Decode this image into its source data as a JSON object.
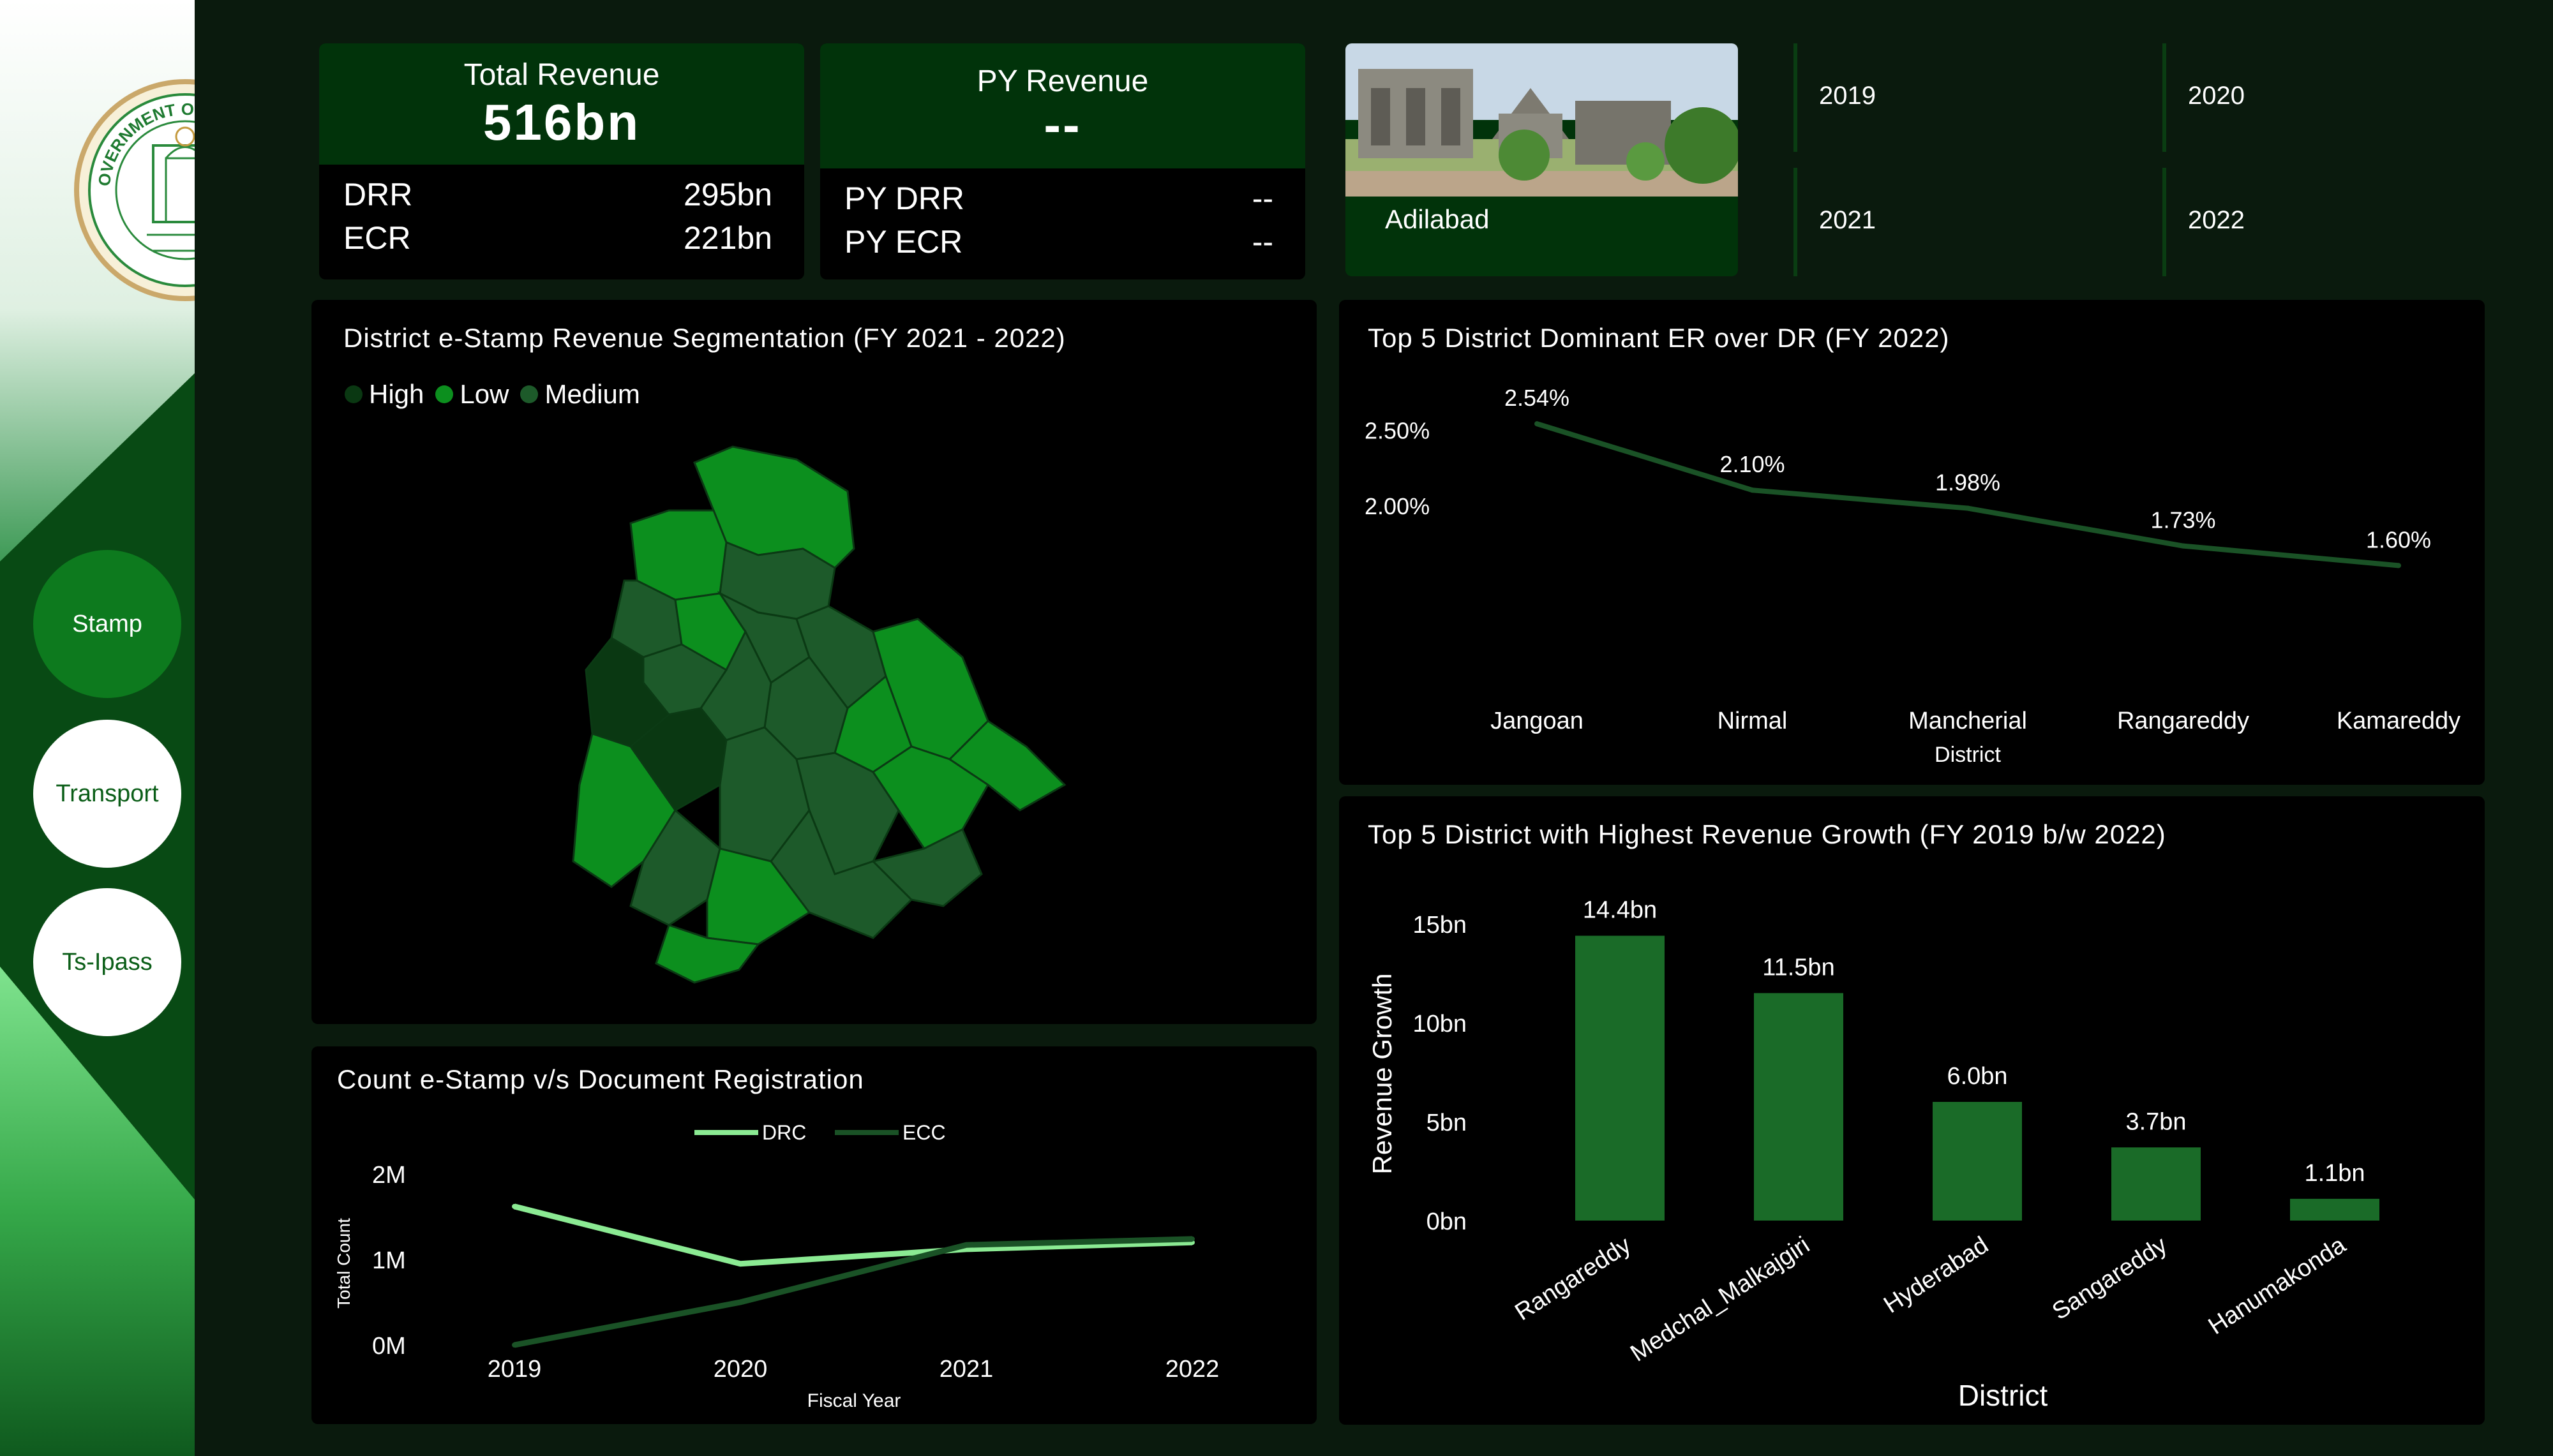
{
  "sidebar": {
    "seal_text": "GOVERNMENT OF TELANGANA",
    "nav": [
      {
        "label": "Stamp",
        "active": true
      },
      {
        "label": "Transport",
        "active": false
      },
      {
        "label": "Ts-Ipass",
        "active": false
      }
    ]
  },
  "kpi_total": {
    "title": "Total Revenue",
    "value": "516bn",
    "rows": [
      {
        "label": "DRR",
        "value": "295bn"
      },
      {
        "label": "ECR",
        "value": "221bn"
      }
    ]
  },
  "kpi_py": {
    "title": "PY Revenue",
    "value": "--",
    "rows": [
      {
        "label": "PY DRR",
        "value": "--"
      },
      {
        "label": "PY ECR",
        "value": "--"
      }
    ]
  },
  "district_card": {
    "label": "Adilabad"
  },
  "year_slicer": {
    "years": [
      "2019",
      "2020",
      "2021",
      "2022"
    ]
  },
  "map_panel": {
    "title": "District e-Stamp Revenue Segmentation (FY 2021 - 2022)",
    "legend": [
      {
        "label": "High",
        "color": "#0a3812"
      },
      {
        "label": "Low",
        "color": "#0c8f1e"
      },
      {
        "label": "Medium",
        "color": "#1d5a2a"
      }
    ]
  },
  "colors": {
    "accent": "#0c8f1e",
    "dark_line": "#1a5226",
    "light_line": "#8bea93",
    "bar": "#1a6b28"
  },
  "chart_data": [
    {
      "type": "line",
      "title": "Top 5 District Dominant ER over DR (FY 2022)",
      "xlabel": "District",
      "ylabel": "",
      "categories": [
        "Jangoan",
        "Nirmal",
        "Mancherial",
        "Rangareddy",
        "Kamareddy"
      ],
      "values": [
        2.54,
        2.1,
        1.98,
        1.73,
        1.6
      ],
      "data_labels": [
        "2.54%",
        "2.10%",
        "1.98%",
        "1.73%",
        "1.60%"
      ],
      "y_ticks": [
        "2.00%",
        "2.50%"
      ],
      "y_tick_values": [
        2.0,
        2.5
      ],
      "ylim": [
        1.5,
        2.6
      ]
    },
    {
      "type": "bar",
      "title": "Top 5 District with Highest Revenue Growth (FY 2019 b/w 2022)",
      "xlabel": "District",
      "ylabel": "Revenue Growth",
      "categories": [
        "Rangareddy",
        "Medchal_Malkajgiri",
        "Hyderabad",
        "Sangareddy",
        "Hanumakonda"
      ],
      "values": [
        14.4,
        11.5,
        6.0,
        3.7,
        1.1
      ],
      "data_labels": [
        "14.4bn",
        "11.5bn",
        "6.0bn",
        "3.7bn",
        "1.1bn"
      ],
      "y_ticks": [
        "0bn",
        "5bn",
        "10bn",
        "15bn"
      ],
      "y_tick_values": [
        0,
        5,
        10,
        15
      ],
      "ylim": [
        0,
        15
      ]
    },
    {
      "type": "line",
      "title": "Count e-Stamp v/s Document Registration",
      "xlabel": "Fiscal Year",
      "ylabel": "Total Count",
      "categories": [
        "2019",
        "2020",
        "2021",
        "2022"
      ],
      "series": [
        {
          "name": "DRC",
          "values": [
            1.62,
            0.95,
            1.12,
            1.2
          ]
        },
        {
          "name": "ECC",
          "values": [
            0.0,
            0.5,
            1.17,
            1.24
          ]
        }
      ],
      "y_ticks": [
        "0M",
        "1M",
        "2M"
      ],
      "y_tick_values": [
        0,
        1,
        2
      ],
      "ylim": [
        0,
        2
      ]
    }
  ]
}
